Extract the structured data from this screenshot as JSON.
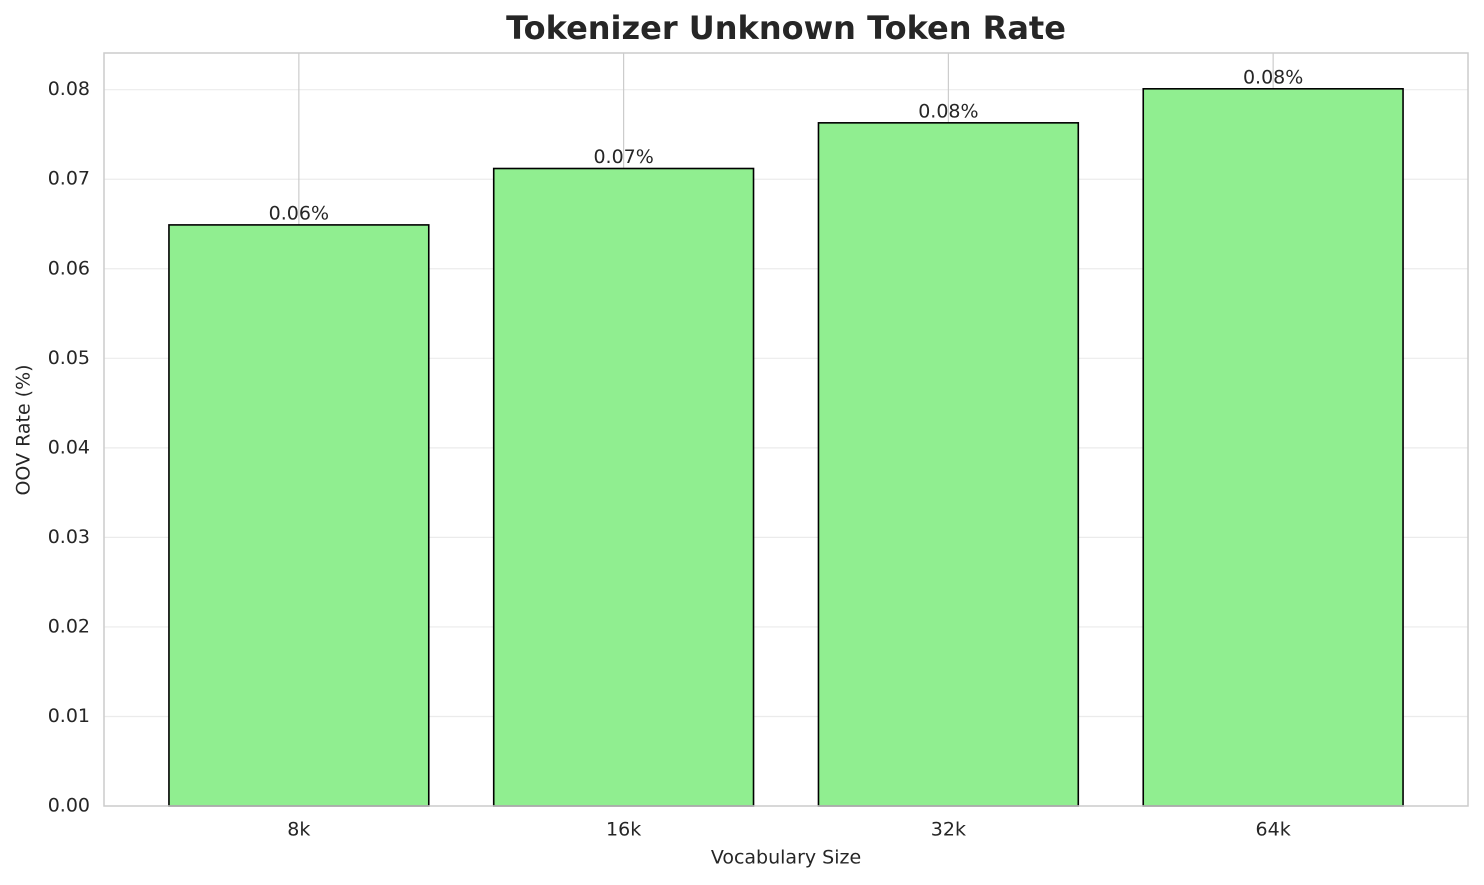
{
  "chart_data": {
    "type": "bar",
    "title": "Tokenizer Unknown Token Rate",
    "x_label": "Vocabulary Size",
    "y_label": "OOV Rate (%)",
    "categories": [
      "8k",
      "16k",
      "32k",
      "64k"
    ],
    "values": [
      0.0649,
      0.0712,
      0.0763,
      0.0801
    ],
    "value_labels": [
      "0.06%",
      "0.07%",
      "0.08%",
      "0.08%"
    ],
    "color": "#90ee90",
    "ylim": [
      0,
      0.0841
    ],
    "yticks": [
      {
        "value": 0,
        "label": "0.00"
      },
      0.01,
      0.02,
      0.03,
      0.04,
      0.05,
      0.06,
      0.07,
      0.08
    ],
    "grid": true
  }
}
